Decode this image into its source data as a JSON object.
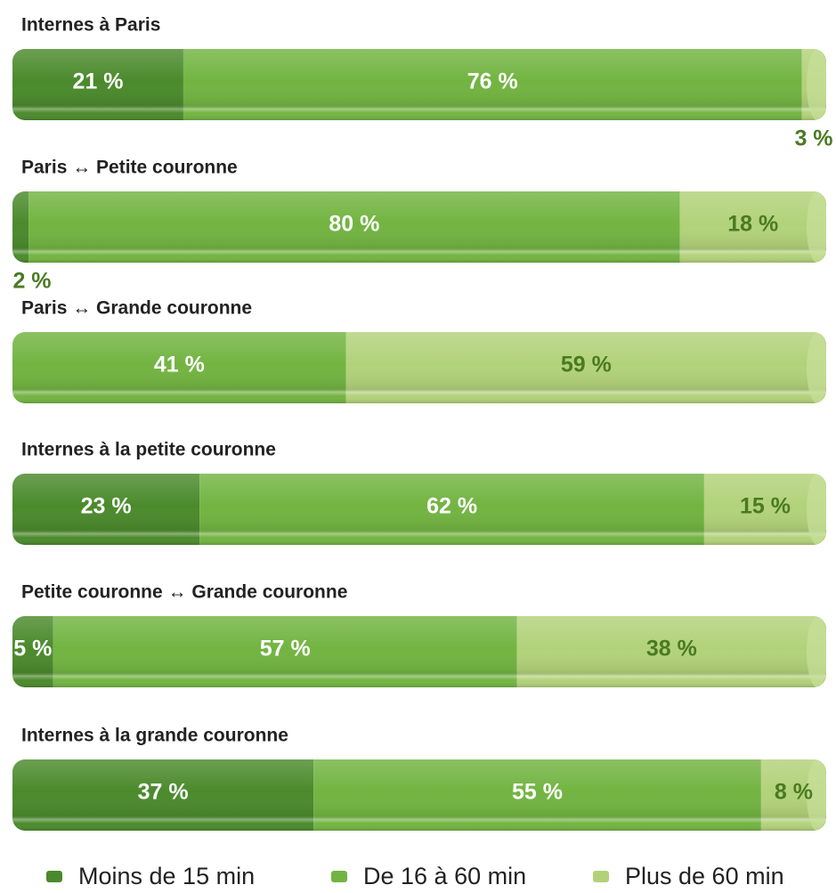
{
  "chart_data": {
    "type": "stacked-bar",
    "categories": [
      "Internes à Paris",
      "Paris ↔ Petite couronne",
      "Paris ↔ Grande couronne",
      "Internes à la petite couronne",
      "Petite couronne ↔ Grande couronne",
      "Internes à la grande couronne"
    ],
    "series": [
      {
        "name": "Moins de 15 min",
        "color": "#4b8a2c",
        "values": [
          21,
          2,
          null,
          23,
          5,
          37
        ],
        "value_labels": [
          "21 %",
          "2 %",
          null,
          "23 %",
          "5 %",
          "37 %"
        ]
      },
      {
        "name": "De 16 à 60 min",
        "color": "#72b441",
        "values": [
          76,
          80,
          41,
          62,
          57,
          55
        ],
        "value_labels": [
          "76 %",
          "80 %",
          "41 %",
          "62 %",
          "57 %",
          "55 %"
        ]
      },
      {
        "name": "Plus de 60 min",
        "color": "#b2d27a",
        "values": [
          3,
          18,
          59,
          15,
          38,
          8
        ],
        "value_labels": [
          "3 %",
          "18 %",
          "59 %",
          "15 %",
          "38 %",
          "8 %"
        ]
      }
    ]
  }
}
